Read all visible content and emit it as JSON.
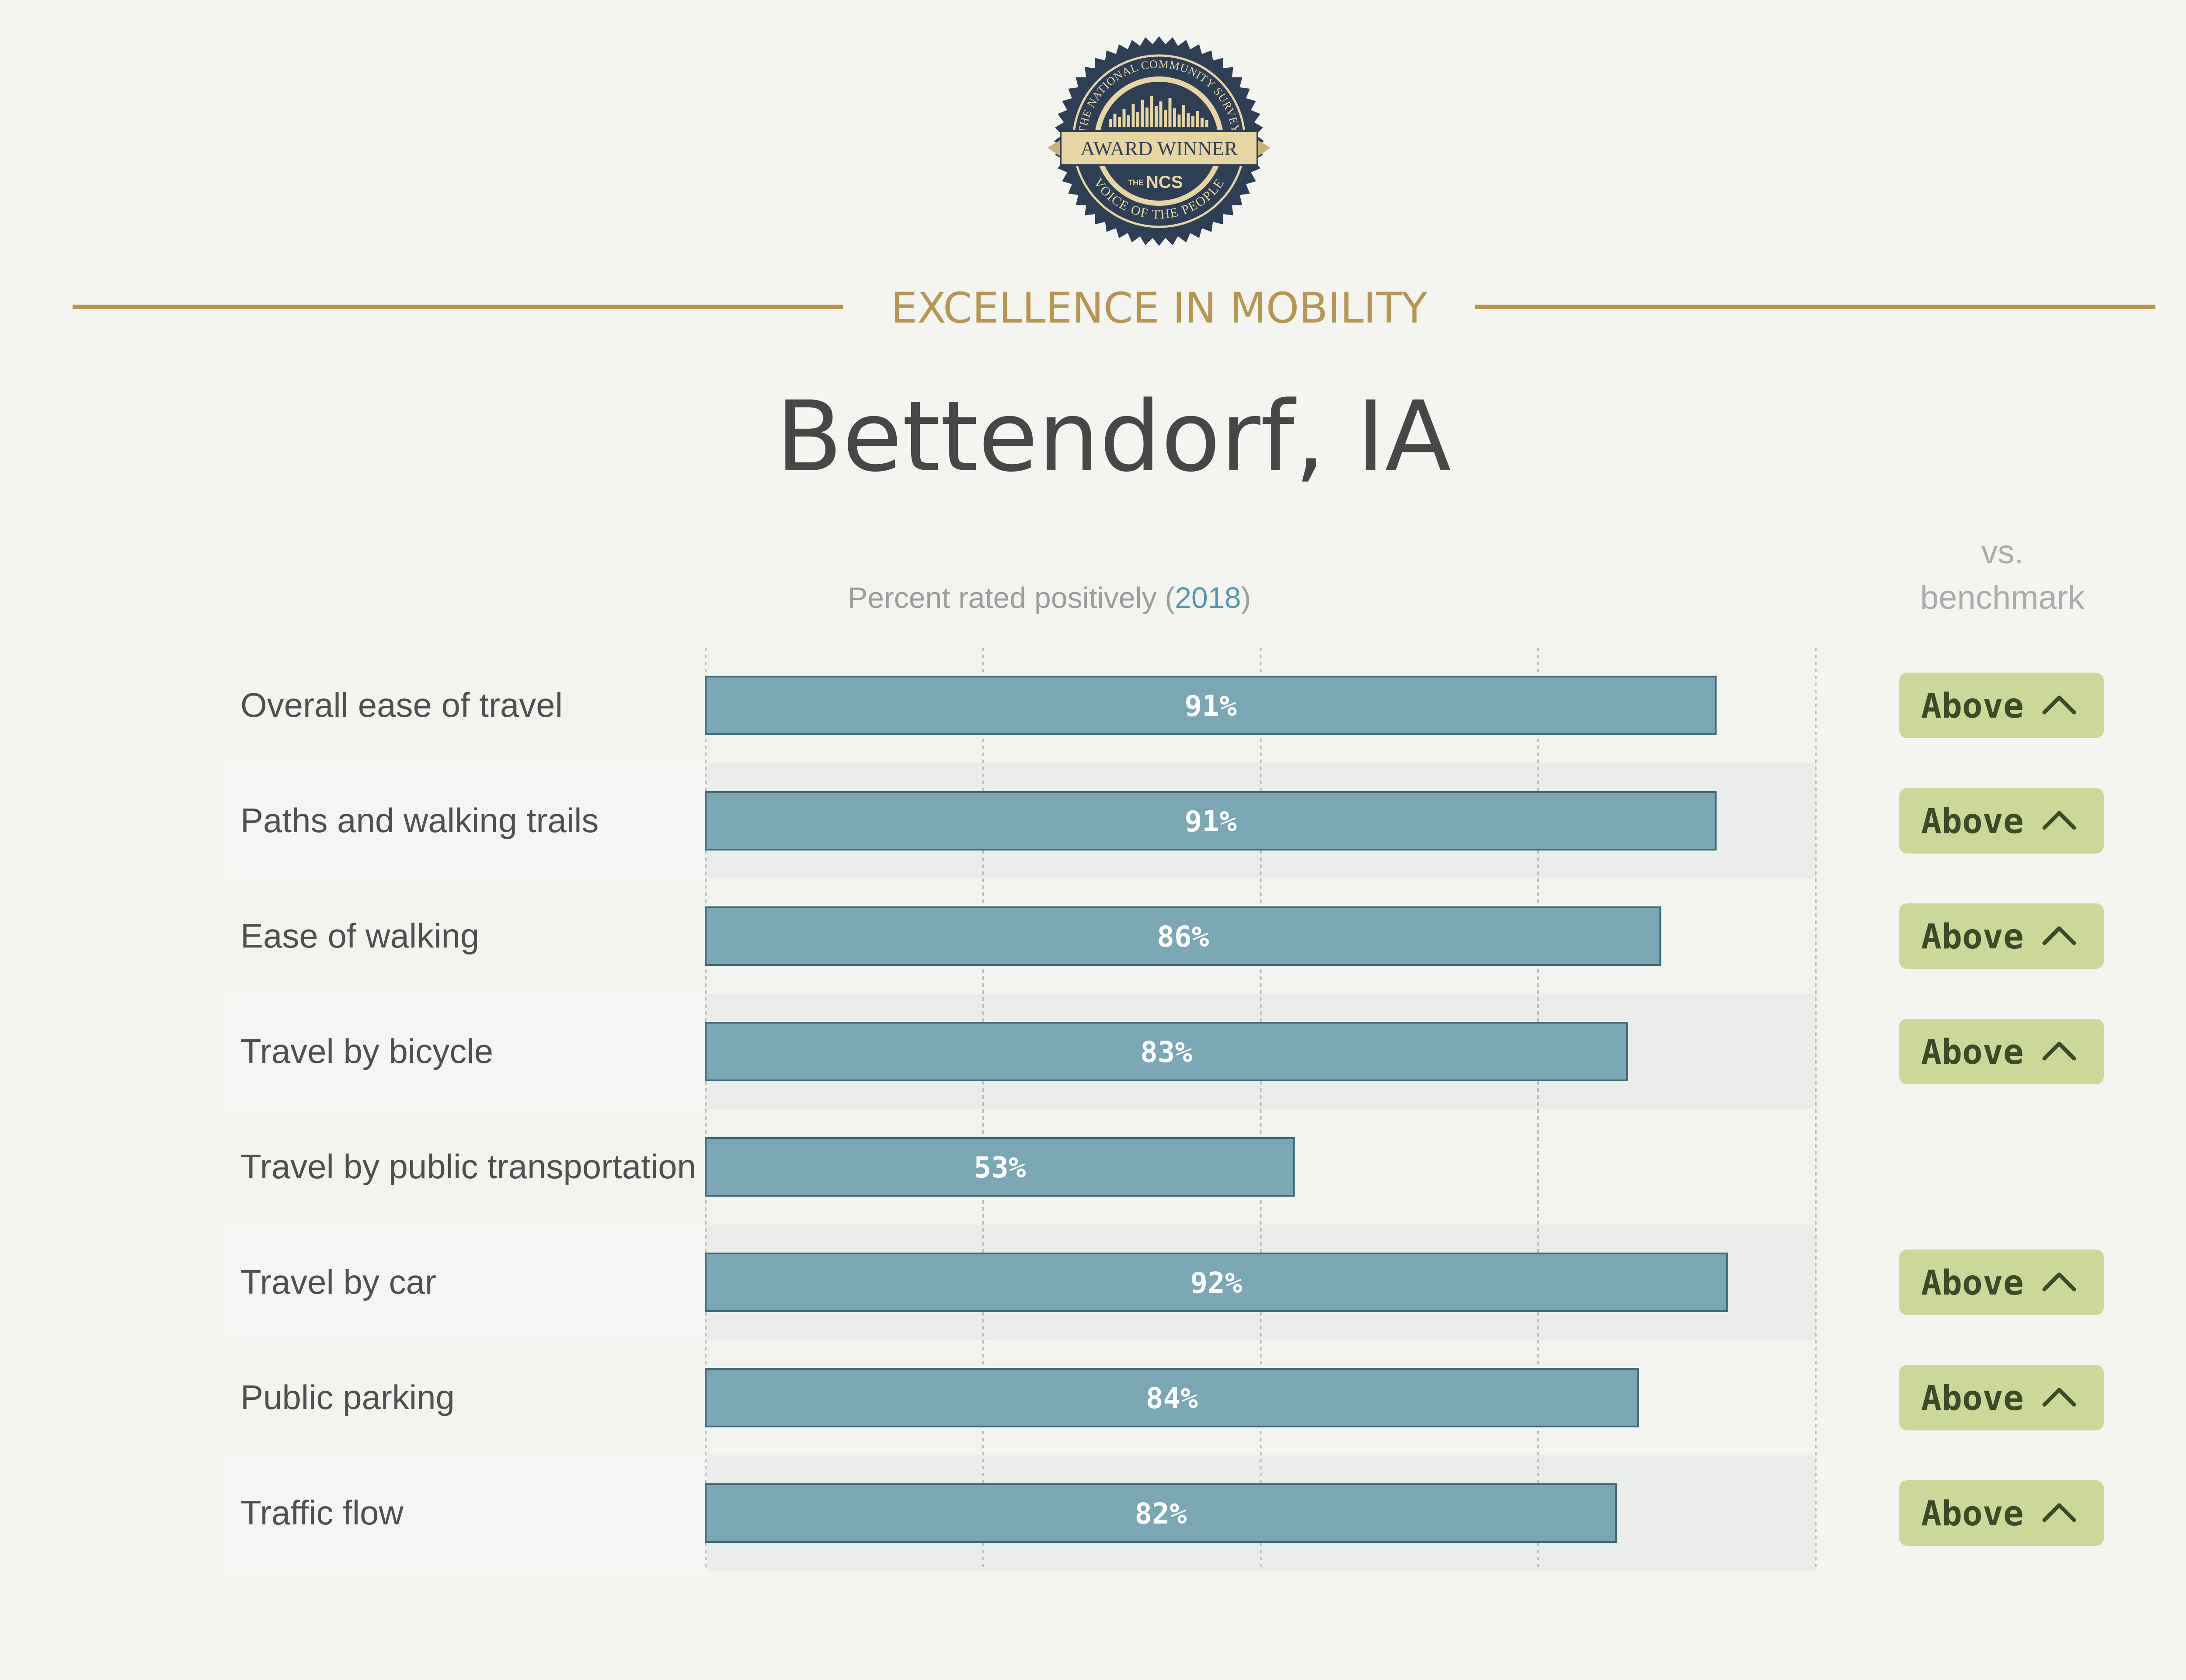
{
  "award": {
    "ring_top": "THE NATIONAL COMMUNITY SURVEY",
    "ribbon": "AWARD WINNER",
    "logo_prefix": "THE",
    "logo": "NCS",
    "ring_bottom": "VOICE OF THE PEOPLE"
  },
  "subtitle": "EXCELLENCE IN MOBILITY",
  "title": "Bettendorf, IA",
  "chart_heading": {
    "prefix": "Percent rated positively (",
    "year": "2018",
    "suffix": ")"
  },
  "benchmark_heading": {
    "line1": "vs.",
    "line2": "benchmark"
  },
  "colors": {
    "bar": "#7ba6b3",
    "bar_border": "#3f6876",
    "badge": "#ccd89a",
    "accent": "#b59652",
    "year": "#5a97ad",
    "seal": "#2e3f55"
  },
  "badge_icon": "chevron-up-icon",
  "chart_data": {
    "type": "bar",
    "orientation": "horizontal",
    "xlim": [
      0,
      100
    ],
    "grid": true,
    "categories": [
      "Overall ease of travel",
      "Paths and walking trails",
      "Ease of walking",
      "Travel by bicycle",
      "Travel by public transportation",
      "Travel by car",
      "Public parking",
      "Traffic flow"
    ],
    "values": [
      91,
      91,
      86,
      83,
      53,
      92,
      84,
      82
    ],
    "value_labels": [
      "91%",
      "91%",
      "86%",
      "83%",
      "53%",
      "92%",
      "84%",
      "82%"
    ],
    "benchmark": [
      "Above",
      "Above",
      "Above",
      "Above",
      "",
      "Above",
      "Above",
      "Above"
    ]
  }
}
